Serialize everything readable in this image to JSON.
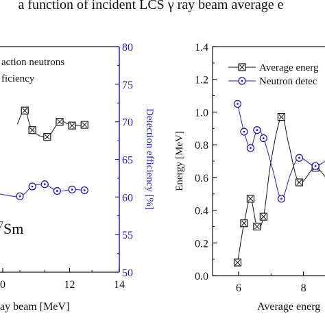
{
  "title_fragment": "a function of incident LCS γ ray beam average e",
  "colors": {
    "black": "#111111",
    "blue": "#1f1fb4"
  },
  "chart_data": [
    {
      "type": "line",
      "panel": "left (cropped)",
      "xlabel": "ay beam [MeV]",
      "xticks": [
        "0",
        "12",
        "14"
      ],
      "xlim": [
        9.2,
        14
      ],
      "y2label": "Detection efficiency [%]",
      "y2lim": [
        50,
        80
      ],
      "y2ticks": [
        "50",
        "55",
        "60",
        "65",
        "70",
        "75",
        "80"
      ],
      "legend": [
        "action neutrons",
        "ficiency"
      ],
      "annotation": "7Sm",
      "series": [
        {
          "marker": "square-x",
          "color": "black",
          "x": [
            10.5,
            11.1,
            11.6,
            12.1,
            12.6
          ],
          "y": [
            68.9,
            68.0,
            70.0,
            69.5,
            69.6
          ],
          "smooth_through": [
            [
              9.9,
              69.7
            ],
            [
              10.2,
              71.5
            ]
          ]
        },
        {
          "marker": "circle-dot",
          "color": "blue",
          "x": [
            10.0,
            10.5,
            11.0,
            11.5,
            12.1,
            12.6
          ],
          "y": [
            60.1,
            61.4,
            61.7,
            60.8,
            61.0,
            60.9
          ]
        }
      ]
    },
    {
      "type": "line",
      "panel": "right (cropped)",
      "xlabel": "Average energ",
      "xticks": [
        "6",
        "8"
      ],
      "xlim": [
        5.2,
        9
      ],
      "ylabel": "Energy [MeV]",
      "ylim": [
        0.0,
        1.4
      ],
      "yticks": [
        "0.0",
        "0.2",
        "0.4",
        "0.6",
        "0.8",
        "1.0",
        "1.2",
        "1.4"
      ],
      "legend": [
        "Average energ",
        "Neutron detec"
      ],
      "series": [
        {
          "name": "Average energ",
          "marker": "square-x",
          "color": "black",
          "x": [
            5.97,
            6.17,
            6.37,
            6.57,
            6.77,
            7.32,
            7.87,
            8.37,
            8.85
          ],
          "y": [
            0.08,
            0.32,
            0.47,
            0.3,
            0.36,
            0.97,
            0.57,
            0.66,
            0.55
          ]
        },
        {
          "name": "Neutron detec",
          "marker": "circle-dot",
          "color": "blue",
          "x": [
            5.97,
            6.17,
            6.37,
            6.57,
            6.77,
            7.32,
            7.87,
            8.37,
            8.85
          ],
          "y": [
            1.05,
            0.88,
            0.78,
            0.89,
            0.84,
            0.47,
            0.72,
            0.67,
            0.73
          ]
        }
      ]
    }
  ]
}
